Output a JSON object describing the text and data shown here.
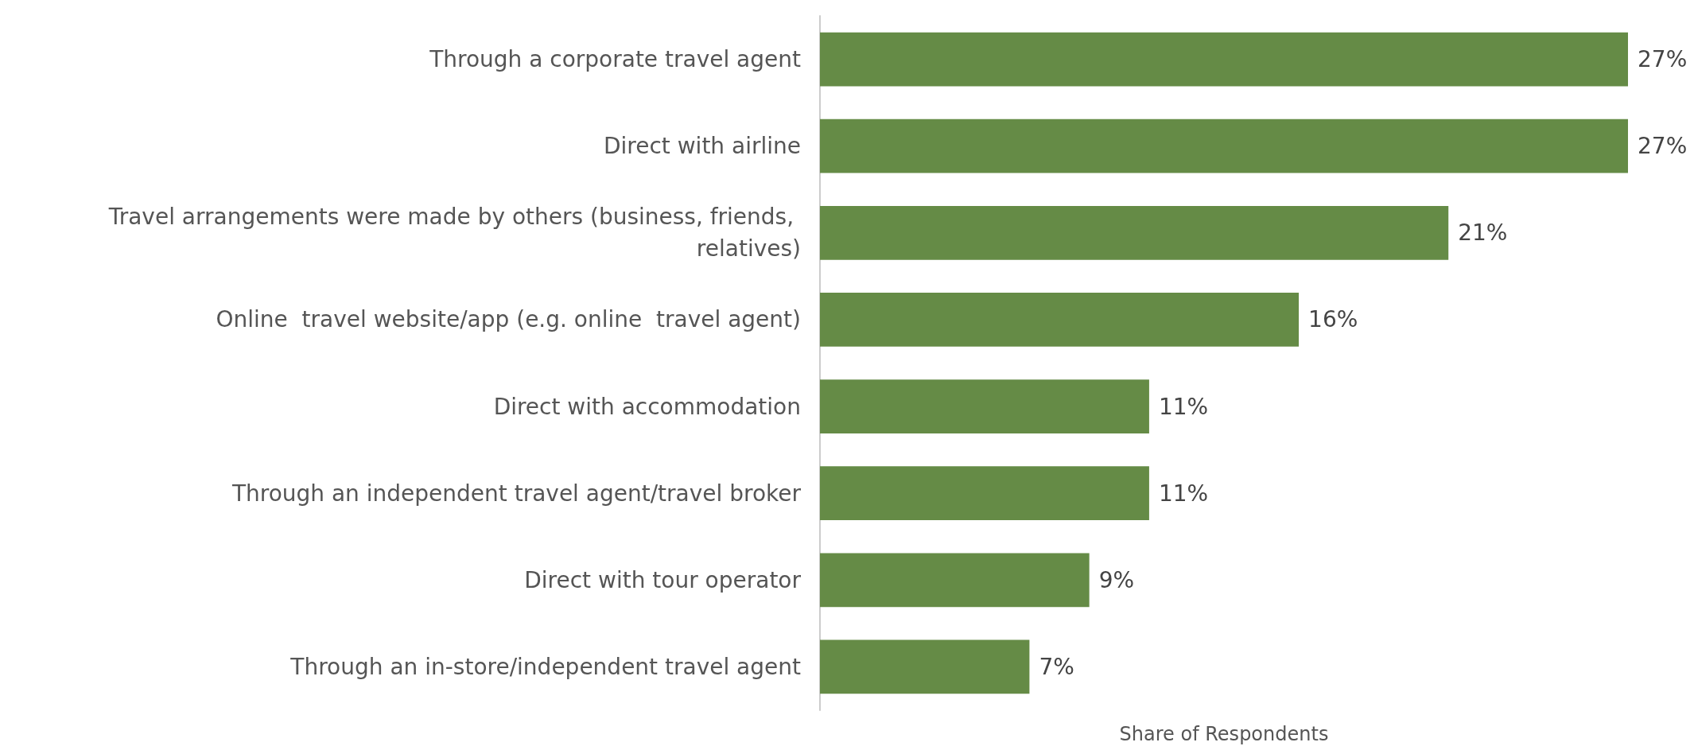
{
  "chart_data": {
    "type": "bar",
    "orientation": "horizontal",
    "xlabel": "Share of Respondents",
    "categories": [
      "Through a corporate travel agent",
      "Direct with airline",
      "Travel arrangements were made by others (business, friends, relatives)",
      "Online  travel website/app (e.g. online  travel agent)",
      "Direct with accommodation",
      "Through an independent travel agent/travel broker",
      "Direct with tour operator",
      "Through an in-store/independent travel agent"
    ],
    "values": [
      27,
      27,
      21,
      16,
      11,
      11,
      9,
      7
    ],
    "value_labels": [
      "27%",
      "27%",
      "21%",
      "16%",
      "11%",
      "11%",
      "9%",
      "7%"
    ],
    "color": "#658b46"
  }
}
